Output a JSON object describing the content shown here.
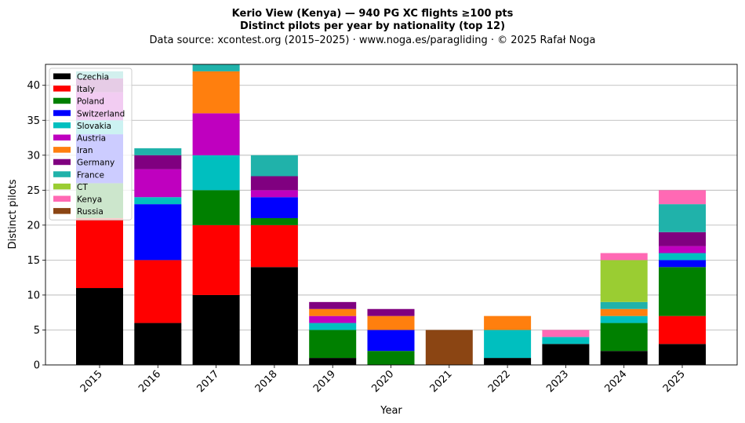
{
  "chart_data": {
    "type": "bar",
    "stacked": true,
    "title": "Kerio View (Kenya)  —  940 PG XC flights ≥100 pts",
    "subtitle": "Distinct pilots per year by nationality (top 12)",
    "source_line": "Data source: xcontest.org (2015–2025)  ·  www.noga.es/paragliding  ·  © 2025 Rafał Noga",
    "xlabel": "Year",
    "ylabel": "Distinct pilots",
    "ylim": [
      0,
      43
    ],
    "yticks": [
      0,
      5,
      10,
      15,
      20,
      25,
      30,
      35,
      40
    ],
    "grid": "horizontal",
    "legend_position": "top-left",
    "categories": [
      "2015",
      "2016",
      "2017",
      "2018",
      "2019",
      "2020",
      "2021",
      "2022",
      "2023",
      "2024",
      "2025"
    ],
    "series": [
      {
        "name": "Czechia",
        "color": "#000000",
        "values": [
          11,
          6,
          10,
          14,
          1,
          0,
          0,
          1,
          3,
          2,
          3
        ]
      },
      {
        "name": "Italy",
        "color": "#ff0000",
        "values": [
          10,
          9,
          10,
          6,
          0,
          0,
          0,
          0,
          0,
          0,
          4
        ]
      },
      {
        "name": "Poland",
        "color": "#008000",
        "values": [
          5,
          0,
          5,
          1,
          4,
          2,
          0,
          0,
          0,
          4,
          7
        ]
      },
      {
        "name": "Switzerland",
        "color": "#0000ff",
        "values": [
          7,
          8,
          0,
          3,
          0,
          3,
          0,
          0,
          0,
          0,
          1
        ]
      },
      {
        "name": "Slovakia",
        "color": "#00bfbf",
        "values": [
          2,
          1,
          5,
          0,
          1,
          0,
          0,
          4,
          1,
          1,
          1
        ]
      },
      {
        "name": "Austria",
        "color": "#bf00bf",
        "values": [
          4,
          4,
          6,
          1,
          1,
          0,
          0,
          0,
          0,
          0,
          1
        ]
      },
      {
        "name": "Iran",
        "color": "#ff7f0e",
        "values": [
          0,
          0,
          6,
          0,
          1,
          2,
          0,
          2,
          0,
          1,
          0
        ]
      },
      {
        "name": "Germany",
        "color": "#800080",
        "values": [
          2,
          2,
          0,
          2,
          1,
          1,
          0,
          0,
          0,
          0,
          2
        ]
      },
      {
        "name": "France",
        "color": "#20b2aa",
        "values": [
          1,
          1,
          1,
          3,
          0,
          0,
          0,
          0,
          0,
          1,
          4
        ]
      },
      {
        "name": "CT",
        "color": "#9acd32",
        "values": [
          0,
          0,
          0,
          0,
          0,
          0,
          0,
          0,
          0,
          6,
          0
        ]
      },
      {
        "name": "Kenya",
        "color": "#ff69b4",
        "values": [
          0,
          0,
          0,
          0,
          0,
          0,
          0,
          0,
          1,
          1,
          2
        ]
      },
      {
        "name": "Russia",
        "color": "#8b4513",
        "values": [
          0,
          0,
          0,
          0,
          0,
          0,
          5,
          0,
          0,
          0,
          0
        ]
      }
    ]
  }
}
